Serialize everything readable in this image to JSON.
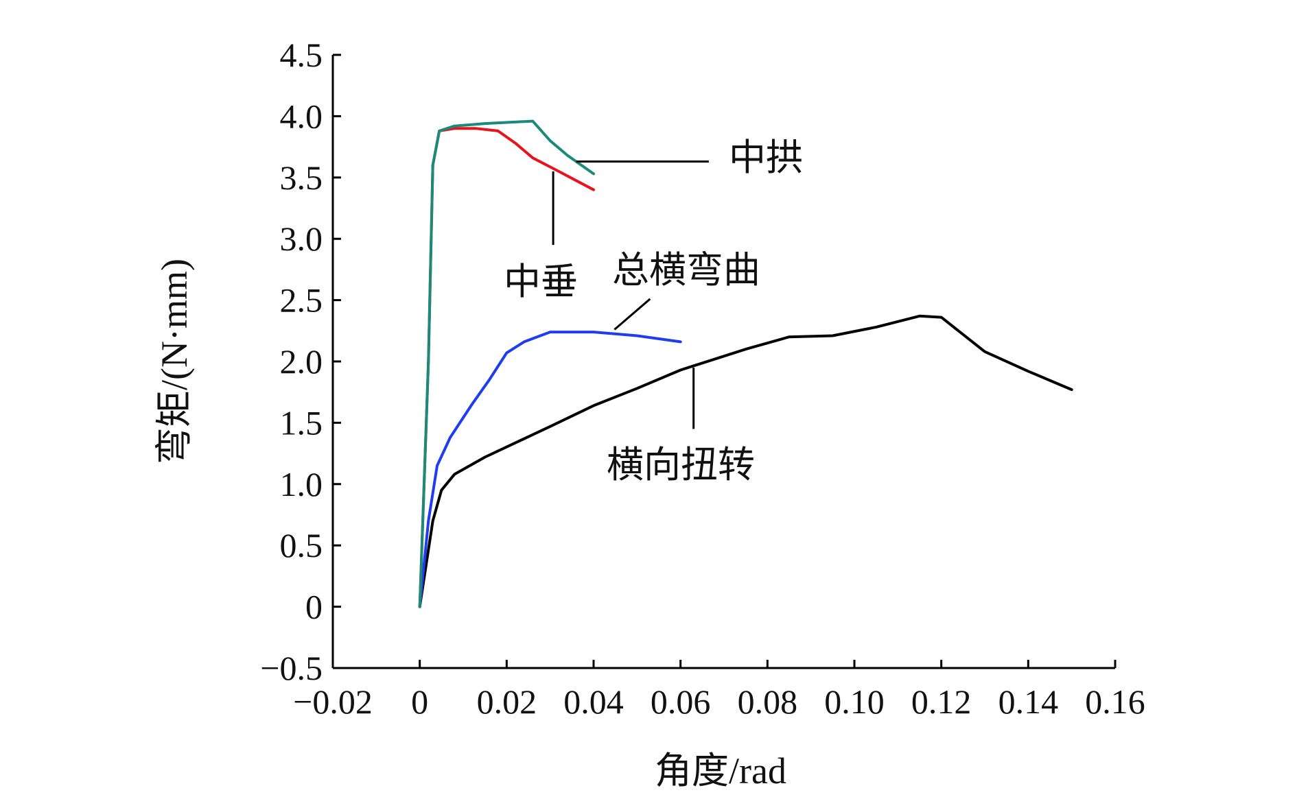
{
  "chart_data": {
    "type": "line",
    "xlabel": "角度/rad",
    "ylabel": "弯矩/(N·mm)",
    "xlim": [
      -0.02,
      0.16
    ],
    "ylim": [
      -0.5,
      4.5
    ],
    "x_ticks": [
      -0.02,
      0,
      0.02,
      0.04,
      0.06,
      0.08,
      0.1,
      0.12,
      0.14,
      0.16
    ],
    "x_tick_labels": [
      "−0.02",
      "0",
      "0.02",
      "0.04",
      "0.06",
      "0.08",
      "0.10",
      "0.12",
      "0.14",
      "0.16"
    ],
    "y_ticks": [
      -0.5,
      0,
      0.5,
      1.0,
      1.5,
      2.0,
      2.5,
      3.0,
      3.5,
      4.0,
      4.5
    ],
    "y_tick_labels": [
      "−0.5",
      "0",
      "0.5",
      "1.0",
      "1.5",
      "2.0",
      "2.5",
      "3.0",
      "3.5",
      "4.0",
      "4.5"
    ],
    "grid": false,
    "series": [
      {
        "name": "中拱",
        "color": "#1a8a7a",
        "points": [
          [
            0,
            0
          ],
          [
            0.002,
            2.0
          ],
          [
            0.003,
            3.6
          ],
          [
            0.0045,
            3.88
          ],
          [
            0.008,
            3.92
          ],
          [
            0.015,
            3.94
          ],
          [
            0.026,
            3.96
          ],
          [
            0.03,
            3.8
          ],
          [
            0.034,
            3.68
          ],
          [
            0.04,
            3.53
          ]
        ]
      },
      {
        "name": "中垂",
        "color": "#e8141c",
        "points": [
          [
            0,
            0
          ],
          [
            0.002,
            2.0
          ],
          [
            0.003,
            3.6
          ],
          [
            0.0045,
            3.88
          ],
          [
            0.008,
            3.9
          ],
          [
            0.013,
            3.9
          ],
          [
            0.018,
            3.88
          ],
          [
            0.022,
            3.78
          ],
          [
            0.026,
            3.66
          ],
          [
            0.032,
            3.55
          ],
          [
            0.04,
            3.4
          ]
        ]
      },
      {
        "name": "总横弯曲",
        "color": "#1f3cf0",
        "points": [
          [
            0,
            0
          ],
          [
            0.002,
            0.7
          ],
          [
            0.004,
            1.15
          ],
          [
            0.007,
            1.38
          ],
          [
            0.012,
            1.65
          ],
          [
            0.016,
            1.85
          ],
          [
            0.02,
            2.07
          ],
          [
            0.024,
            2.16
          ],
          [
            0.03,
            2.24
          ],
          [
            0.04,
            2.24
          ],
          [
            0.05,
            2.21
          ],
          [
            0.06,
            2.16
          ]
        ]
      },
      {
        "name": "横向扭转",
        "color": "#000000",
        "points": [
          [
            0,
            0
          ],
          [
            0.003,
            0.7
          ],
          [
            0.005,
            0.95
          ],
          [
            0.008,
            1.08
          ],
          [
            0.015,
            1.22
          ],
          [
            0.03,
            1.47
          ],
          [
            0.04,
            1.64
          ],
          [
            0.05,
            1.78
          ],
          [
            0.06,
            1.93
          ],
          [
            0.075,
            2.1
          ],
          [
            0.085,
            2.2
          ],
          [
            0.095,
            2.21
          ],
          [
            0.105,
            2.28
          ],
          [
            0.115,
            2.37
          ],
          [
            0.12,
            2.36
          ],
          [
            0.13,
            2.08
          ],
          [
            0.14,
            1.92
          ],
          [
            0.15,
            1.77
          ]
        ]
      }
    ],
    "annotations": [
      {
        "text": "中拱",
        "series": "中拱"
      },
      {
        "text": "中垂",
        "series": "中垂"
      },
      {
        "text": "总横弯曲",
        "series": "总横弯曲"
      },
      {
        "text": "横向扭转",
        "series": "横向扭转"
      }
    ]
  }
}
